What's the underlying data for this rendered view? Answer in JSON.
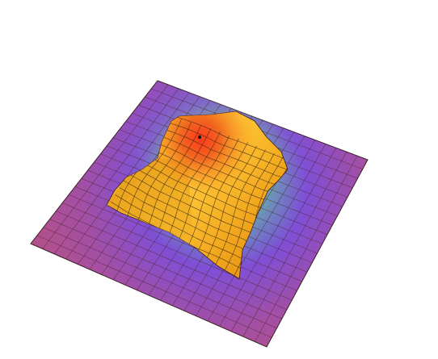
{
  "scene": {
    "subject": "3d-surface-plot",
    "colors": {
      "background": "#ffffff",
      "plane_outer": "#b2508e",
      "plane_mid": "#7f4fd6",
      "plane_glow": "#8fb36d",
      "surface_dark": "#e28f13",
      "surface": "#f4ab1f",
      "surface_light": "#ffcc3a",
      "peak": "#ee4a1f",
      "grid_line": "#4a2a2e",
      "edge": "#3a1e26",
      "marker": "#1a1a1a"
    }
  }
}
